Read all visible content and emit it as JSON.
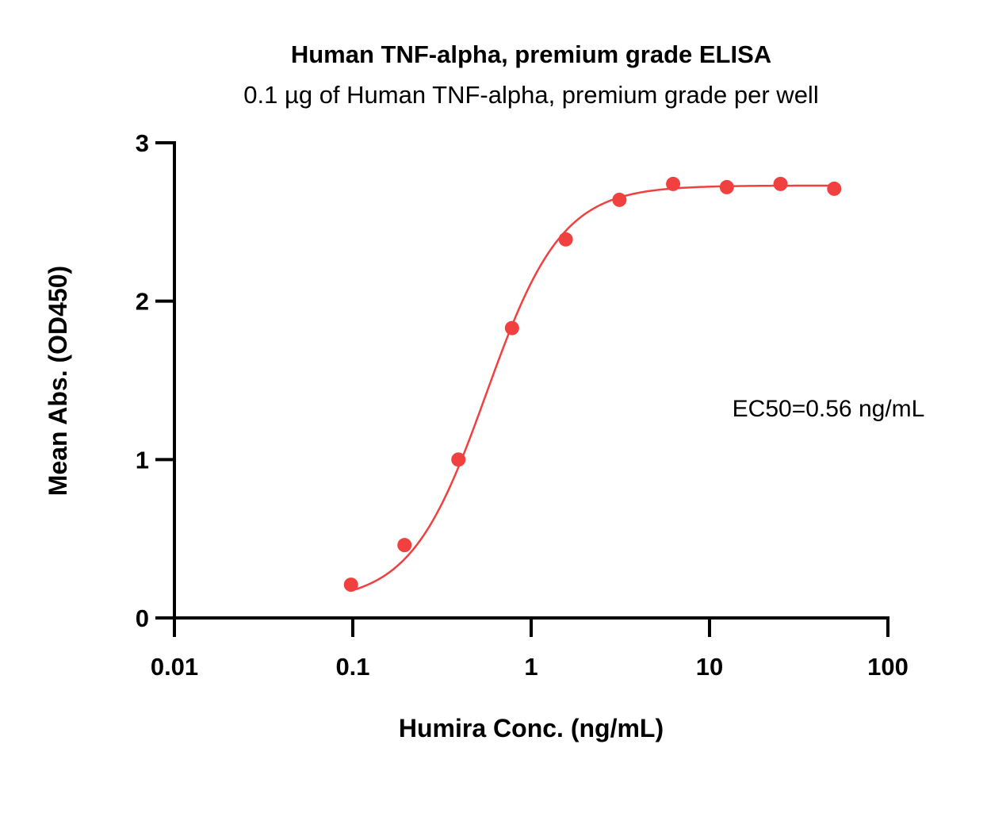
{
  "chart_data": {
    "type": "scatter",
    "title": "Human TNF-alpha, premium grade ELISA",
    "subtitle": "0.1 µg of Human TNF-alpha, premium grade per well",
    "xlabel": "Humira Conc. (ng/mL)",
    "ylabel": "Mean Abs. (OD450)",
    "x_scale": "log",
    "xlim": [
      0.01,
      100
    ],
    "ylim": [
      0,
      3
    ],
    "x_ticks": [
      0.01,
      0.1,
      1,
      10,
      100
    ],
    "x_tick_labels": [
      "0.01",
      "0.1",
      "1",
      "10",
      "100"
    ],
    "y_ticks": [
      0,
      1,
      2,
      3
    ],
    "y_tick_labels": [
      "0",
      "1",
      "2",
      "3"
    ],
    "grid": false,
    "color": "#f04040",
    "series": [
      {
        "x": [
          0.0977,
          0.195,
          0.391,
          0.781,
          1.5625,
          3.125,
          6.25,
          12.5,
          25,
          50
        ],
        "y": [
          0.21,
          0.46,
          1.0,
          1.83,
          2.39,
          2.64,
          2.74,
          2.72,
          2.74,
          2.71
        ]
      }
    ],
    "fit": {
      "model": "4PL",
      "bottom": 0.1,
      "top": 2.73,
      "ec50": 0.56,
      "hill": 2.05
    },
    "annotation": "EC50=0.56 ng/mL"
  }
}
